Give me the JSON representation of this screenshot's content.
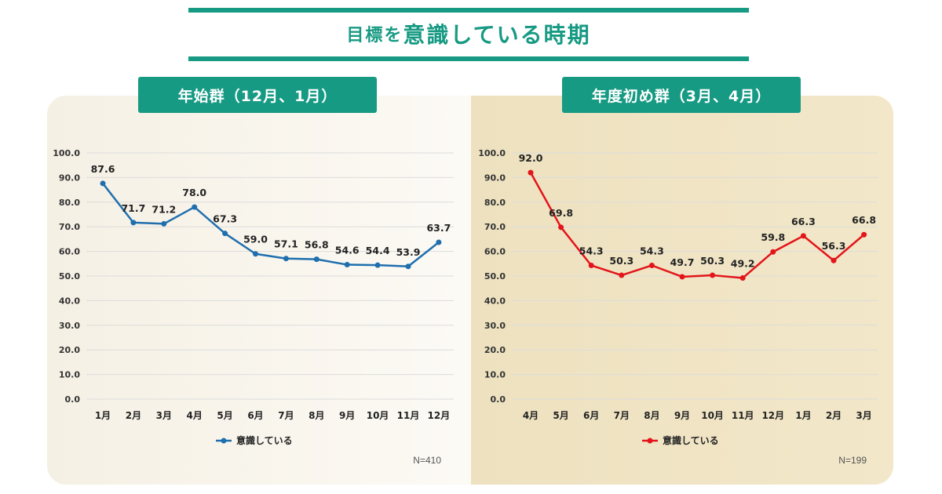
{
  "header": {
    "title_small": "目標を",
    "title_large": "意識している時期"
  },
  "chart_data": [
    {
      "type": "line",
      "title": "年始群（12月、1月）",
      "categories": [
        "1月",
        "2月",
        "3月",
        "4月",
        "5月",
        "6月",
        "7月",
        "8月",
        "9月",
        "10月",
        "11月",
        "12月"
      ],
      "series": [
        {
          "name": "意識している",
          "values": [
            87.6,
            71.7,
            71.2,
            78.0,
            67.3,
            59.0,
            57.1,
            56.8,
            54.6,
            54.4,
            53.9,
            63.7
          ]
        }
      ],
      "data_labels": [
        "87.6",
        "71.7",
        "71.2",
        "78.0",
        "67.3",
        "59.0",
        "57.1",
        "56.8",
        "54.6",
        "54.4",
        "53.9",
        "63.7"
      ],
      "yticks": [
        "0.0",
        "10.0",
        "20.0",
        "30.0",
        "40.0",
        "50.0",
        "60.0",
        "70.0",
        "80.0",
        "90.0",
        "100.0"
      ],
      "ylim": [
        0,
        100
      ],
      "color": "#1f6fae",
      "note": "N=410",
      "legend": "bottom-center",
      "grid": true
    },
    {
      "type": "line",
      "title": "年度初め群（3月、4月）",
      "categories": [
        "4月",
        "5月",
        "6月",
        "7月",
        "8月",
        "9月",
        "10月",
        "11月",
        "12月",
        "1月",
        "2月",
        "3月"
      ],
      "series": [
        {
          "name": "意識している",
          "values": [
            92.0,
            69.8,
            54.3,
            50.3,
            54.3,
            49.7,
            50.3,
            49.2,
            59.8,
            66.3,
            56.3,
            66.8
          ]
        }
      ],
      "data_labels": [
        "92.0",
        "69.8",
        "54.3",
        "50.3",
        "54.3",
        "49.7",
        "50.3",
        "49.2",
        "59.8",
        "66.3",
        "56.3",
        "66.8"
      ],
      "yticks": [
        "0.0",
        "10.0",
        "20.0",
        "30.0",
        "40.0",
        "50.0",
        "60.0",
        "70.0",
        "80.0",
        "90.0",
        "100.0"
      ],
      "ylim": [
        0,
        100
      ],
      "color": "#e3151a",
      "note": "N=199",
      "legend": "bottom-center",
      "grid": true
    }
  ]
}
